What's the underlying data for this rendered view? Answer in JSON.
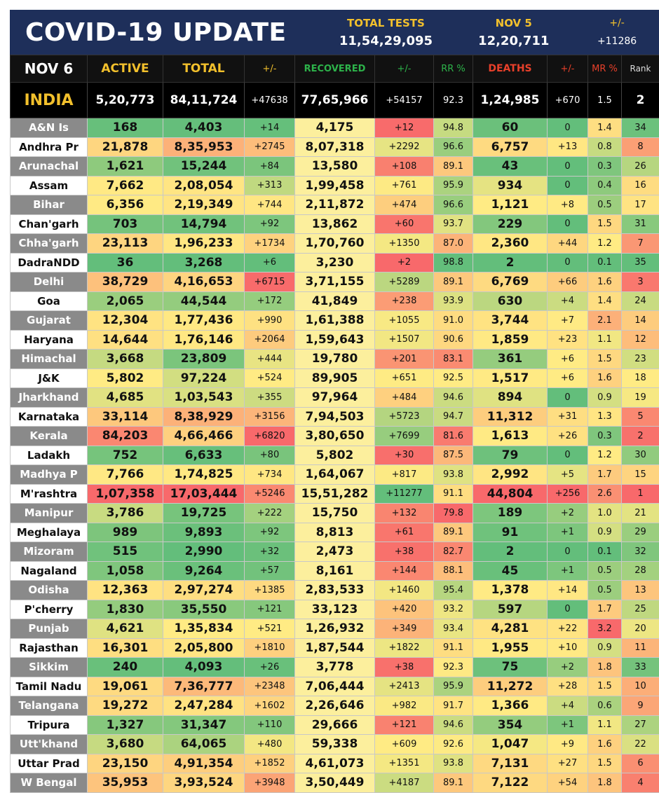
{
  "banner": {
    "title": "COVID-19 UPDATE",
    "tests_label": "TOTAL TESTS",
    "tests_value": "11,54,29,095",
    "day_label": "NOV 5",
    "day_value": "12,20,711",
    "pm_label": "+/-",
    "pm_value": "+11286"
  },
  "header": {
    "date": "NOV 6",
    "active": "ACTIVE",
    "total": "TOTAL",
    "pm1": "+/-",
    "recovered": "RECOVERED",
    "pm2": "+/-",
    "rr": "RR %",
    "deaths": "DEATHS",
    "pm3": "+/-",
    "mr": "MR %",
    "rank": "Rank"
  },
  "india": [
    "INDIA",
    "5,20,773",
    "84,11,724",
    "+47638",
    "77,65,966",
    "+54157",
    "92.3",
    "1,24,985",
    "+670",
    "1.5",
    "2"
  ],
  "rows": [
    [
      "A&N Is",
      "168",
      "4,403",
      "+14",
      "4,175",
      "+12",
      "94.8",
      "60",
      "0",
      "1.4",
      "34"
    ],
    [
      "Andhra Pr",
      "21,878",
      "8,35,953",
      "+2745",
      "8,07,318",
      "+2292",
      "96.6",
      "6,757",
      "+13",
      "0.8",
      "8"
    ],
    [
      "Arunachal",
      "1,621",
      "15,244",
      "+84",
      "13,580",
      "+108",
      "89.1",
      "43",
      "0",
      "0.3",
      "26"
    ],
    [
      "Assam",
      "7,662",
      "2,08,054",
      "+313",
      "1,99,458",
      "+761",
      "95.9",
      "934",
      "0",
      "0.4",
      "16"
    ],
    [
      "Bihar",
      "6,356",
      "2,19,349",
      "+744",
      "2,11,872",
      "+474",
      "96.6",
      "1,121",
      "+8",
      "0.5",
      "17"
    ],
    [
      "Chan'garh",
      "703",
      "14,794",
      "+92",
      "13,862",
      "+60",
      "93.7",
      "229",
      "0",
      "1.5",
      "31"
    ],
    [
      "Chha'garh",
      "23,113",
      "1,96,233",
      "+1734",
      "1,70,760",
      "+1350",
      "87.0",
      "2,360",
      "+44",
      "1.2",
      "7"
    ],
    [
      "DadraNDD",
      "36",
      "3,268",
      "+6",
      "3,230",
      "+2",
      "98.8",
      "2",
      "0",
      "0.1",
      "35"
    ],
    [
      "Delhi",
      "38,729",
      "4,16,653",
      "+6715",
      "3,71,155",
      "+5289",
      "89.1",
      "6,769",
      "+66",
      "1.6",
      "3"
    ],
    [
      "Goa",
      "2,065",
      "44,544",
      "+172",
      "41,849",
      "+238",
      "93.9",
      "630",
      "+4",
      "1.4",
      "24"
    ],
    [
      "Gujarat",
      "12,304",
      "1,77,436",
      "+990",
      "1,61,388",
      "+1055",
      "91.0",
      "3,744",
      "+7",
      "2.1",
      "14"
    ],
    [
      "Haryana",
      "14,644",
      "1,76,146",
      "+2064",
      "1,59,643",
      "+1507",
      "90.6",
      "1,859",
      "+23",
      "1.1",
      "12"
    ],
    [
      "Himachal",
      "3,668",
      "23,809",
      "+444",
      "19,780",
      "+201",
      "83.1",
      "361",
      "+6",
      "1.5",
      "23"
    ],
    [
      "J&K",
      "5,802",
      "97,224",
      "+524",
      "89,905",
      "+651",
      "92.5",
      "1,517",
      "+6",
      "1.6",
      "18"
    ],
    [
      "Jharkhand",
      "4,685",
      "1,03,543",
      "+355",
      "97,964",
      "+484",
      "94.6",
      "894",
      "0",
      "0.9",
      "19"
    ],
    [
      "Karnataka",
      "33,114",
      "8,38,929",
      "+3156",
      "7,94,503",
      "+5723",
      "94.7",
      "11,312",
      "+31",
      "1.3",
      "5"
    ],
    [
      "Kerala",
      "84,203",
      "4,66,466",
      "+6820",
      "3,80,650",
      "+7699",
      "81.6",
      "1,613",
      "+26",
      "0.3",
      "2"
    ],
    [
      "Ladakh",
      "752",
      "6,633",
      "+80",
      "5,802",
      "+30",
      "87.5",
      "79",
      "0",
      "1.2",
      "30"
    ],
    [
      "Madhya P",
      "7,766",
      "1,74,825",
      "+734",
      "1,64,067",
      "+817",
      "93.8",
      "2,992",
      "+5",
      "1.7",
      "15"
    ],
    [
      "M'rashtra",
      "1,07,358",
      "17,03,444",
      "+5246",
      "15,51,282",
      "+11277",
      "91.1",
      "44,804",
      "+256",
      "2.6",
      "1"
    ],
    [
      "Manipur",
      "3,786",
      "19,725",
      "+222",
      "15,750",
      "+132",
      "79.8",
      "189",
      "+2",
      "1.0",
      "21"
    ],
    [
      "Meghalaya",
      "989",
      "9,893",
      "+92",
      "8,813",
      "+61",
      "89.1",
      "91",
      "+1",
      "0.9",
      "29"
    ],
    [
      "Mizoram",
      "515",
      "2,990",
      "+32",
      "2,473",
      "+38",
      "82.7",
      "2",
      "0",
      "0.1",
      "32"
    ],
    [
      "Nagaland",
      "1,058",
      "9,264",
      "+57",
      "8,161",
      "+144",
      "88.1",
      "45",
      "+1",
      "0.5",
      "28"
    ],
    [
      "Odisha",
      "12,363",
      "2,97,274",
      "+1385",
      "2,83,533",
      "+1460",
      "95.4",
      "1,378",
      "+14",
      "0.5",
      "13"
    ],
    [
      "P'cherry",
      "1,830",
      "35,550",
      "+121",
      "33,123",
      "+420",
      "93.2",
      "597",
      "0",
      "1.7",
      "25"
    ],
    [
      "Punjab",
      "4,621",
      "1,35,834",
      "+521",
      "1,26,932",
      "+349",
      "93.4",
      "4,281",
      "+22",
      "3.2",
      "20"
    ],
    [
      "Rajasthan",
      "16,301",
      "2,05,800",
      "+1810",
      "1,87,544",
      "+1822",
      "91.1",
      "1,955",
      "+10",
      "0.9",
      "11"
    ],
    [
      "Sikkim",
      "240",
      "4,093",
      "+26",
      "3,778",
      "+38",
      "92.3",
      "75",
      "+2",
      "1.8",
      "33"
    ],
    [
      "Tamil Nadu",
      "19,061",
      "7,36,777",
      "+2348",
      "7,06,444",
      "+2413",
      "95.9",
      "11,272",
      "+28",
      "1.5",
      "10"
    ],
    [
      "Telangana",
      "19,272",
      "2,47,284",
      "+1602",
      "2,26,646",
      "+982",
      "91.7",
      "1,366",
      "+4",
      "0.6",
      "9"
    ],
    [
      "Tripura",
      "1,327",
      "31,347",
      "+110",
      "29,666",
      "+121",
      "94.6",
      "354",
      "+1",
      "1.1",
      "27"
    ],
    [
      "Utt'khand",
      "3,680",
      "64,065",
      "+480",
      "59,338",
      "+609",
      "92.6",
      "1,047",
      "+9",
      "1.6",
      "22"
    ],
    [
      "Uttar Prad",
      "23,150",
      "4,91,354",
      "+1852",
      "4,61,073",
      "+1351",
      "93.8",
      "7,131",
      "+27",
      "1.5",
      "6"
    ],
    [
      "W Bengal",
      "35,953",
      "3,93,524",
      "+3948",
      "3,50,449",
      "+4187",
      "89.1",
      "7,122",
      "+54",
      "1.8",
      "4"
    ]
  ],
  "colors": {
    "banner_bg": "#1e2f5a",
    "header_gold": "#f2c02c",
    "recovered_green": "#2db34a",
    "deaths_red": "#e8402a",
    "scale_red": "#f8696b",
    "scale_yellow": "#ffeb84",
    "scale_green": "#63be7b"
  }
}
